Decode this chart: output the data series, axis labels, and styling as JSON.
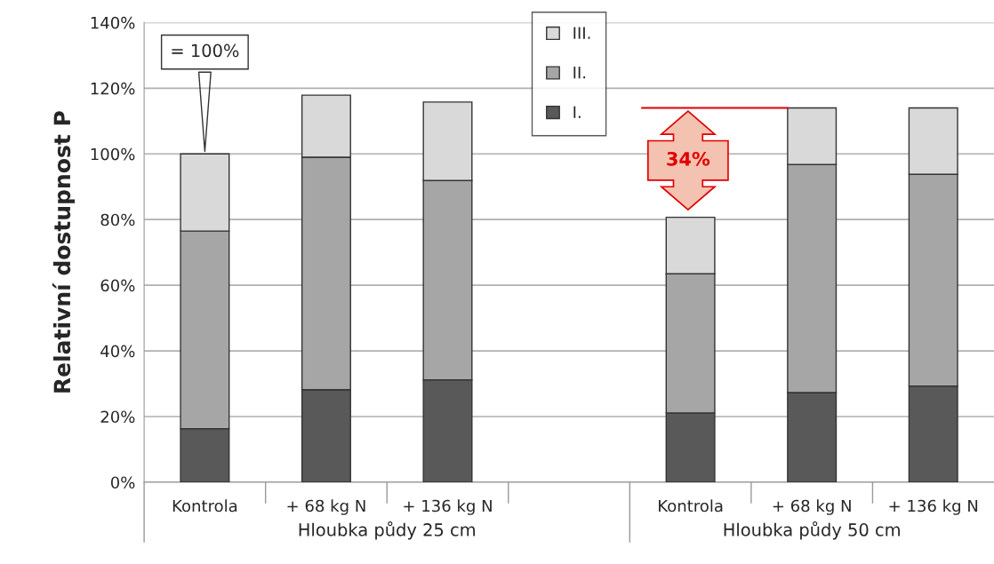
{
  "chart_data": {
    "type": "bar",
    "stacked": true,
    "ylabel": "Relativní dostupnost P",
    "categories": [
      "Kontrola",
      "+ 68 kg N",
      "+ 136 kg N",
      null,
      "Kontrola",
      "+ 68 kg N",
      "+ 136 kg N"
    ],
    "series": [
      {
        "name": "I.",
        "color": "#595959",
        "values": [
          16.3,
          28.2,
          31.2,
          null,
          21.1,
          27.3,
          29.3
        ]
      },
      {
        "name": "II.",
        "color": "#a6a6a6",
        "values": [
          60.2,
          70.8,
          60.7,
          null,
          42.4,
          69.5,
          64.5
        ]
      },
      {
        "name": "III.",
        "color": "#d9d9d9",
        "values": [
          23.5,
          18.9,
          23.9,
          null,
          17.2,
          17.2,
          20.2
        ]
      }
    ],
    "ylim": [
      0,
      140
    ],
    "yticks": [
      {
        "value": 0,
        "label": "0%"
      },
      {
        "value": 20,
        "label": "20%"
      },
      {
        "value": 40,
        "label": "40%"
      },
      {
        "value": 60,
        "label": "60%"
      },
      {
        "value": 80,
        "label": "80%"
      },
      {
        "value": 100,
        "label": "100%"
      },
      {
        "value": 120,
        "label": "120%"
      },
      {
        "value": 140,
        "label": "140%"
      }
    ],
    "grid": "y",
    "legend": "top",
    "ref_lines": [
      {
        "axis": "y",
        "value": 114,
        "color": "#e00000"
      }
    ],
    "annotations": [
      "Hloubka půdy 25 cm",
      "Hloubka půdy 50 cm",
      "= 100%",
      "34%"
    ]
  }
}
